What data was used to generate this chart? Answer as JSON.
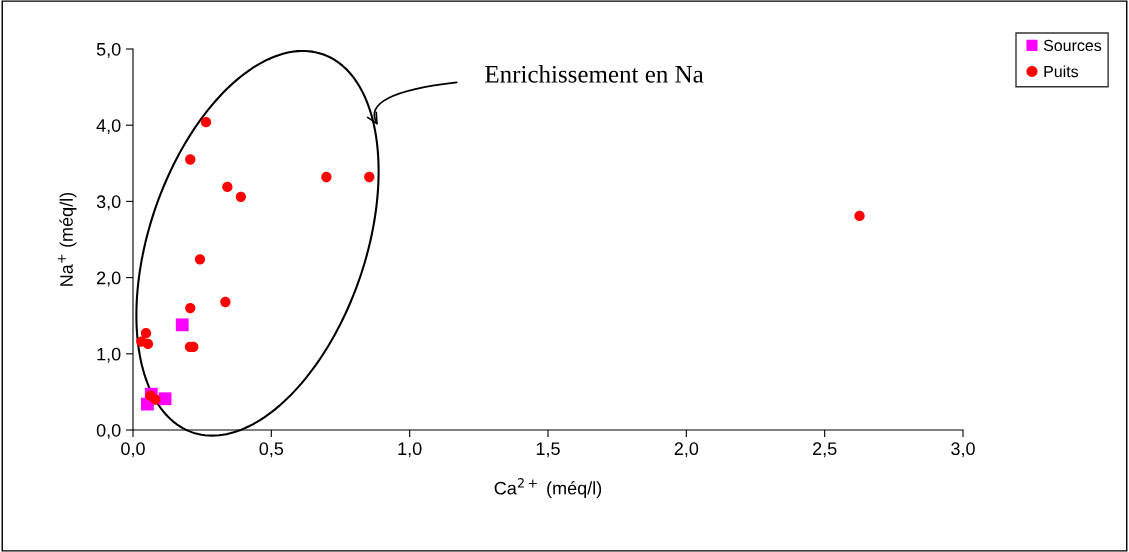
{
  "chart_data": {
    "type": "scatter",
    "xlabel": "Ca$^{2+}$ (méq/l)",
    "ylabel": "Na$^{+}$ (méq/l)",
    "annotations": [
      "Enrichissement en Na"
    ],
    "series": [
      {
        "name": "Sources",
        "color": "#ff00ff",
        "marker": "square",
        "x": [
          0.178,
          0.066,
          0.052,
          0.116
        ],
        "values": [
          1.38,
          0.47,
          0.34,
          0.41
        ]
      },
      {
        "name": "Puits",
        "color": "#ff0000",
        "marker": "circle",
        "x": [
          0.264,
          0.207,
          0.341,
          0.39,
          0.699,
          0.854,
          0.242,
          0.334,
          0.207,
          0.047,
          0.03,
          0.054,
          0.206,
          0.218,
          0.063,
          0.081,
          2.626
        ],
        "values": [
          4.04,
          3.55,
          3.19,
          3.06,
          3.32,
          3.32,
          2.24,
          1.68,
          1.6,
          1.27,
          1.16,
          1.13,
          1.09,
          1.09,
          0.45,
          0.4,
          2.81
        ]
      }
    ],
    "xlim": [
      0,
      3
    ],
    "xticks": [
      {
        "value": 0,
        "label": "0,0"
      },
      {
        "value": 0.5,
        "label": "0,5"
      },
      {
        "value": 1,
        "label": "1,0"
      },
      {
        "value": 1.5,
        "label": "1,5"
      },
      {
        "value": 2,
        "label": "2,0"
      },
      {
        "value": 2.5,
        "label": "2,5"
      },
      {
        "value": 3,
        "label": "3,0"
      }
    ],
    "ylim": [
      0,
      5
    ],
    "yticks": [
      {
        "value": 0,
        "label": "0,0"
      },
      {
        "value": 1,
        "label": "1,0"
      },
      {
        "value": 2,
        "label": "2,0"
      },
      {
        "value": 3,
        "label": "3,0"
      },
      {
        "value": 4,
        "label": "4,0"
      },
      {
        "value": 5,
        "label": "5,0"
      }
    ],
    "legend": "right",
    "grid": false
  }
}
